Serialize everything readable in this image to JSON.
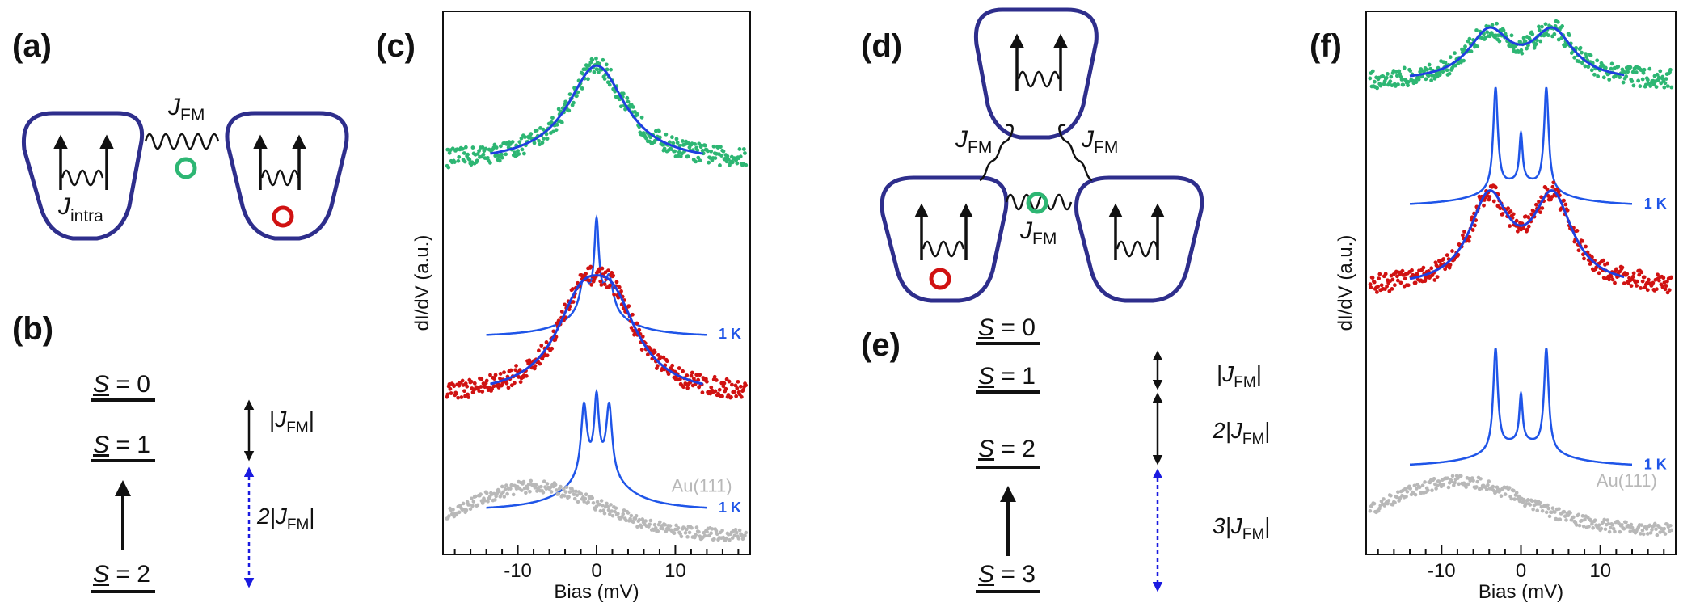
{
  "panel_labels": {
    "a": "(a)",
    "b": "(b)",
    "c": "(c)",
    "d": "(d)",
    "e": "(e)",
    "f": "(f)"
  },
  "schematic_a": {
    "coupling_main": "J",
    "coupling_sub": "FM",
    "intra_main": "J",
    "intra_sub": "intra"
  },
  "schematic_d": {
    "coupling_main": "J",
    "coupling_sub": "FM"
  },
  "levels_b": {
    "states": [
      {
        "s": "S",
        "eq": " = 0"
      },
      {
        "s": "S",
        "eq": " = 1"
      },
      {
        "s": "S",
        "eq": " = 2"
      }
    ],
    "gap1": {
      "pre": "|",
      "j": "J",
      "sub": "FM",
      "post": "|"
    },
    "gap2": {
      "pre": "2|",
      "j": "J",
      "sub": "FM",
      "post": "|"
    }
  },
  "levels_e": {
    "states": [
      {
        "s": "S",
        "eq": " = 0"
      },
      {
        "s": "S",
        "eq": " = 1"
      },
      {
        "s": "S",
        "eq": " = 2"
      },
      {
        "s": "S",
        "eq": " = 3"
      }
    ],
    "gap1": {
      "pre": "|",
      "j": "J",
      "sub": "FM",
      "post": "|"
    },
    "gap2": {
      "pre": "2|",
      "j": "J",
      "sub": "FM",
      "post": "|"
    },
    "gap3": {
      "pre": "3|",
      "j": "J",
      "sub": "FM",
      "post": "|"
    }
  },
  "colors": {
    "triangle_outline": "#2e2e8c",
    "green_spectrum": "#2db673",
    "red_spectrum": "#d01212",
    "gold_spectrum": "#b8b8b8",
    "fit_line": "#1f3fe0",
    "sim_line": "#1f55e8",
    "arrow_blue": "#1a1ae0"
  },
  "chart_data": [
    {
      "panel": "(c)",
      "type": "line",
      "xlabel": "Bias (mV)",
      "ylabel": "dI/dV (a.u.)",
      "xlim": [
        -19.5,
        19.5
      ],
      "xticks": [
        -10,
        0,
        10
      ],
      "xtick_labels": [
        "-10",
        "0",
        "10"
      ],
      "ylim": [
        0,
        10
      ],
      "series": [
        {
          "name": "green",
          "kind": "scatter",
          "offset": 7.2,
          "amp": 1.8,
          "fit_range": [
            -13.5,
            13.5
          ],
          "x_range": [
            -19,
            19
          ],
          "model": [
            {
              "x0": 0,
              "g": 4.5,
              "a": 1.0
            }
          ]
        },
        {
          "name": "sim_green",
          "kind": "sim",
          "offset": 4.0,
          "x_range": [
            -14,
            14
          ],
          "label": "1 K",
          "model": [
            {
              "x0": 0,
              "g": 0.35,
              "a": 1.0
            },
            {
              "x0": -1.6,
              "g": 0.6,
              "a": 0.4
            },
            {
              "x0": 1.6,
              "g": 0.6,
              "a": 0.4
            },
            {
              "x0": 0,
              "g": 4.0,
              "a": 0.35
            }
          ]
        },
        {
          "name": "red",
          "kind": "scatter",
          "offset": 2.9,
          "amp": 2.1,
          "fit_range": [
            -13.5,
            13.5
          ],
          "x_range": [
            -19,
            19
          ],
          "model": [
            {
              "x0": -2.0,
              "g": 4.0,
              "a": 0.7
            },
            {
              "x0": 2.0,
              "g": 4.0,
              "a": 0.7
            }
          ]
        },
        {
          "name": "sim_red",
          "kind": "sim",
          "offset": 0.8,
          "x_range": [
            -14,
            14
          ],
          "label": "1 K",
          "model": [
            {
              "x0": 0,
              "g": 0.35,
              "a": 0.75
            },
            {
              "x0": -1.6,
              "g": 0.45,
              "a": 0.75
            },
            {
              "x0": 1.6,
              "g": 0.45,
              "a": 0.75
            },
            {
              "x0": 0,
              "g": 4.0,
              "a": 0.45
            }
          ]
        },
        {
          "name": "Au(111)",
          "kind": "gold",
          "offset": 0.2,
          "x_range": [
            -19,
            19
          ],
          "label": "Au(111)"
        }
      ]
    },
    {
      "panel": "(f)",
      "type": "line",
      "xlabel": "Bias (mV)",
      "ylabel": "dI/dV (a.u.)",
      "xlim": [
        -19.5,
        19.5
      ],
      "xticks": [
        -10,
        0,
        10
      ],
      "xtick_labels": [
        "-10",
        "0",
        "10"
      ],
      "ylim": [
        0,
        10
      ],
      "series": [
        {
          "name": "green",
          "kind": "scatter",
          "offset": 8.7,
          "amp": 1.0,
          "fit_range": [
            -14,
            13
          ],
          "x_range": [
            -19,
            19
          ],
          "model": [
            {
              "x0": -4.0,
              "g": 3.2,
              "a": 0.85
            },
            {
              "x0": 4.0,
              "g": 3.2,
              "a": 0.85
            }
          ]
        },
        {
          "name": "sim_green",
          "kind": "sim",
          "offset": 6.4,
          "x_range": [
            -14,
            14
          ],
          "label": "1 K",
          "model": [
            {
              "x0": -3.2,
              "g": 0.35,
              "a": 0.75
            },
            {
              "x0": 3.2,
              "g": 0.35,
              "a": 0.75
            },
            {
              "x0": 0,
              "g": 0.25,
              "a": 0.35
            },
            {
              "x0": 0,
              "g": 5.0,
              "a": 0.18
            }
          ]
        },
        {
          "name": "red",
          "kind": "scatter",
          "offset": 4.9,
          "amp": 1.8,
          "fit_range": [
            -14,
            13
          ],
          "x_range": [
            -19,
            19
          ],
          "model": [
            {
              "x0": -4.0,
              "g": 3.0,
              "a": 0.85
            },
            {
              "x0": 4.0,
              "g": 3.0,
              "a": 0.85
            }
          ]
        },
        {
          "name": "sim_red",
          "kind": "sim",
          "offset": 1.6,
          "x_range": [
            -14,
            14
          ],
          "label": "1 K",
          "model": [
            {
              "x0": -3.2,
              "g": 0.35,
              "a": 0.9
            },
            {
              "x0": 3.2,
              "g": 0.35,
              "a": 0.9
            },
            {
              "x0": 0,
              "g": 0.25,
              "a": 0.42
            },
            {
              "x0": 0,
              "g": 5.0,
              "a": 0.22
            }
          ]
        },
        {
          "name": "Au(111)",
          "kind": "gold",
          "offset": 0.3,
          "x_range": [
            -19,
            19
          ],
          "label": "Au(111)"
        }
      ]
    }
  ]
}
